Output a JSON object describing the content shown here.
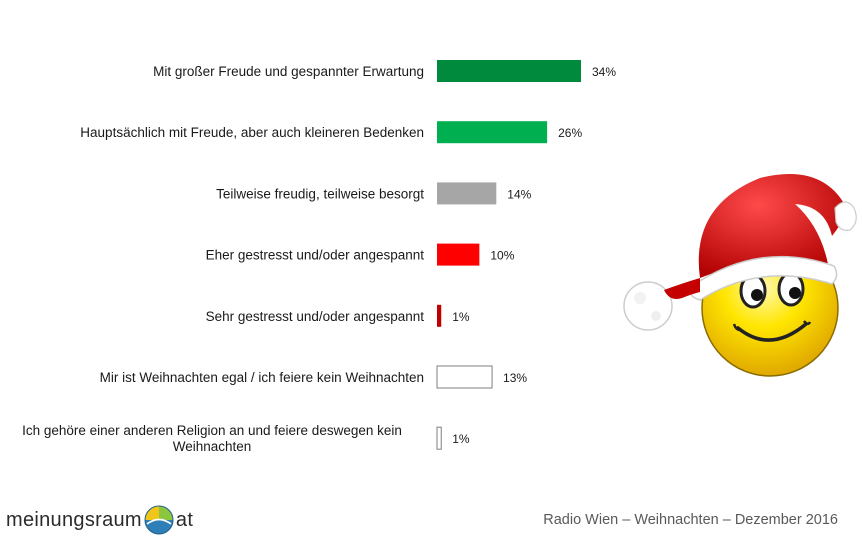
{
  "chart_data": {
    "type": "bar",
    "orientation": "horizontal",
    "categories": [
      "Mit großer Freude und gespannter Erwartung",
      "Hauptsächlich mit Freude, aber auch kleineren Bedenken",
      "Teilweise freudig, teilweise besorgt",
      "Eher gestresst und/oder angespannt",
      "Sehr gestresst und/oder angespannt",
      "Mir ist Weihnachten egal / ich feiere kein Weihnachten",
      "Ich gehöre einer anderen Religion an und feiere deswegen kein Weihnachten"
    ],
    "category_lines": [
      [
        "Mit großer Freude und gespannter Erwartung"
      ],
      [
        "Hauptsächlich mit Freude, aber auch kleineren Bedenken"
      ],
      [
        "Teilweise freudig, teilweise besorgt"
      ],
      [
        "Eher gestresst und/oder angespannt"
      ],
      [
        "Sehr gestresst und/oder angespannt"
      ],
      [
        "Mir ist Weihnachten egal / ich feiere kein Weihnachten"
      ],
      [
        "Ich gehöre einer anderen Religion an und feiere deswegen kein",
        "Weihnachten"
      ]
    ],
    "values": [
      34,
      26,
      14,
      10,
      1,
      13,
      1
    ],
    "value_labels": [
      "34%",
      "26%",
      "14%",
      "10%",
      "1%",
      "13%",
      "1%"
    ],
    "colors": [
      "#008a3e",
      "#00b050",
      "#a6a6a6",
      "#ff0000",
      "#c00000",
      "#ffffff",
      "#ffffff"
    ],
    "unit": "%",
    "xlim": [
      0,
      34
    ],
    "grid": false,
    "legend": "none"
  },
  "logo": {
    "left": "meinungsraum",
    "right": "at"
  },
  "footer": {
    "text": "Radio Wien – Weihnachten – Dezember 2016"
  },
  "illustration": {
    "icon": "santa-hat-smiley-icon"
  }
}
